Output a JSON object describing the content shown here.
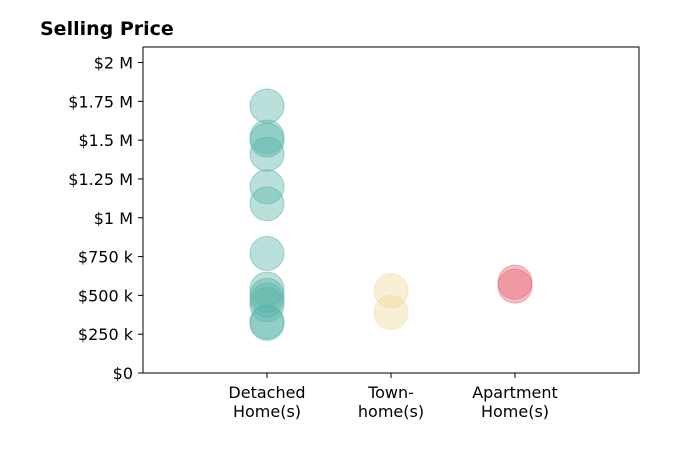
{
  "chart_data": {
    "type": "scatter",
    "title": "Selling Price",
    "xlabel": "",
    "ylabel": "",
    "categories": [
      "Detached\nHome(s)",
      "Town-\nhome(s)",
      "Apartment\nHome(s)"
    ],
    "xlim": [
      -1,
      3
    ],
    "ylim": [
      0,
      2100000
    ],
    "yticks": [
      0,
      250000,
      500000,
      750000,
      1000000,
      1250000,
      1500000,
      1750000,
      2000000
    ],
    "yticklabels": [
      "$0",
      "$250 k",
      "$500 k",
      "$750 k",
      "$1 M",
      "$1.25 M",
      "$1.5 M",
      "$1.75 M",
      "$2 M"
    ],
    "grid": false,
    "series": [
      {
        "category": "Detached\nHome(s)",
        "color": "#5ab5a9",
        "values": [
          1720000,
          1520000,
          1500000,
          1410000,
          1200000,
          1090000,
          770000,
          540000,
          500000,
          470000,
          440000,
          330000,
          320000
        ]
      },
      {
        "category": "Town-\nhome(s)",
        "color": "#f0d99b",
        "values": [
          530000,
          390000
        ]
      },
      {
        "category": "Apartment\nHome(s)",
        "color": "#e86775",
        "values": [
          585000,
          560000
        ]
      }
    ]
  }
}
